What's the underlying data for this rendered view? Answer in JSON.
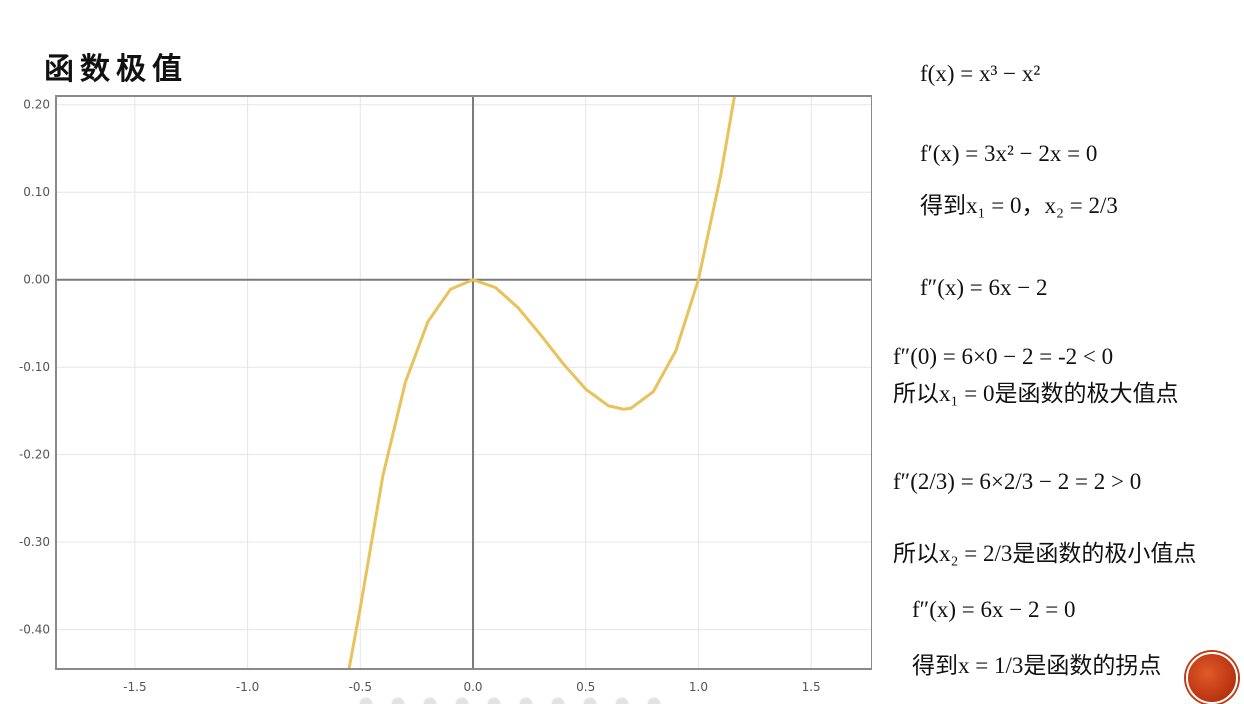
{
  "slide": {
    "title": "函数极值"
  },
  "colors": {
    "curve": "#e8c25a",
    "axis": "#7a7a7a",
    "grid": "#e6e6e6",
    "logo": "#c23b14"
  },
  "chart_data": {
    "type": "line",
    "title": "",
    "xlabel": "",
    "ylabel": "",
    "xlim": [
      -1.85,
      1.77
    ],
    "ylim": [
      -0.445,
      0.21
    ],
    "x_ticks": [
      "-1.5",
      "-1.0",
      "-0.5",
      "0.0",
      "0.5",
      "1.0",
      "1.5"
    ],
    "x_tick_values": [
      -1.5,
      -1.0,
      -0.5,
      0.0,
      0.5,
      1.0,
      1.5
    ],
    "y_ticks": [
      "0.20",
      "0.10",
      "0.00",
      "-0.10",
      "-0.20",
      "-0.30",
      "-0.40"
    ],
    "y_tick_values": [
      0.2,
      0.1,
      0.0,
      -0.1,
      -0.2,
      -0.3,
      -0.4
    ],
    "grid": true,
    "series": [
      {
        "function": "x^3 - x^2",
        "x": [
          -0.55,
          -0.5,
          -0.4,
          -0.3,
          -0.2,
          -0.1,
          0.0,
          0.1,
          0.2,
          0.3,
          0.4,
          0.5,
          0.6,
          0.667,
          0.7,
          0.8,
          0.9,
          1.0,
          1.1,
          1.16
        ],
        "y": [
          -0.469,
          -0.375,
          -0.224,
          -0.117,
          -0.048,
          -0.011,
          0.0,
          -0.009,
          -0.032,
          -0.063,
          -0.096,
          -0.125,
          -0.144,
          -0.148,
          -0.147,
          -0.128,
          -0.081,
          0.0,
          0.121,
          0.216
        ]
      }
    ]
  },
  "equations": {
    "f": "f(x) = x³ − x²",
    "f1": "f′(x) = 3x² − 2x = 0",
    "roots": "得到x₁ = 0，x₂ = 2/3",
    "f2": "f″(x) = 6x − 2",
    "f2_at0": "f″(0) = 6×0 − 2 = -2 < 0",
    "max_point": "所以x₁ = 0是函数的极大值点",
    "f2_at23": "f″(2/3) = 6×2/3 − 2 = 2 > 0",
    "min_point": "所以x₂ = 2/3是函数的极小值点",
    "inflection_eq": "f″(x) = 6x − 2 = 0",
    "inflection": "得到x = 1/3是函数的拐点"
  }
}
